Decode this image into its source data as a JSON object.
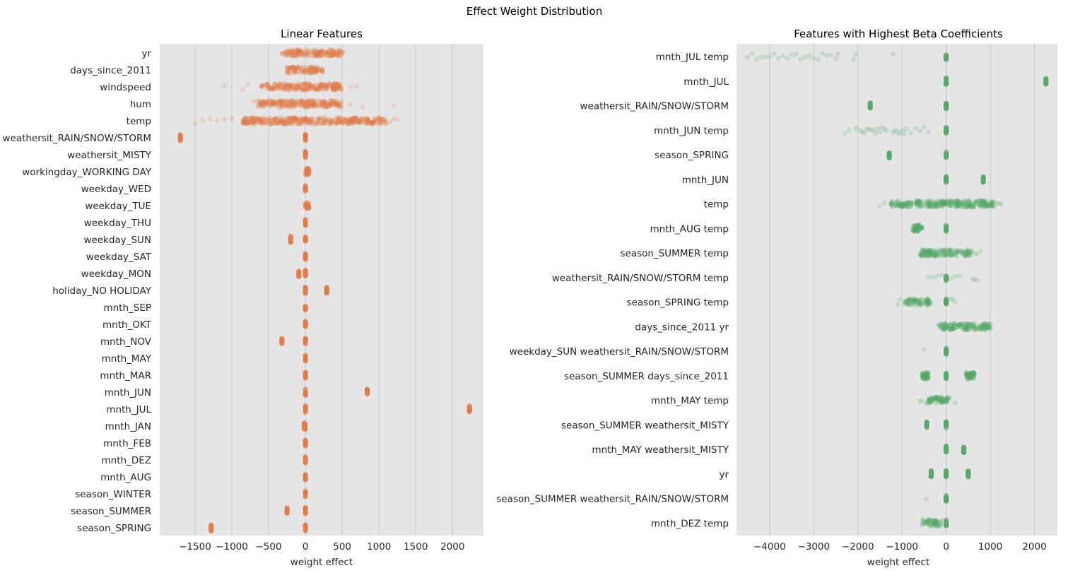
{
  "figure": {
    "suptitle": "Effect Weight Distribution",
    "background": "#ffffff",
    "axes_background": "#e5e5e5",
    "grid_color": "#c8c8c8"
  },
  "chart_data": [
    {
      "type": "scatter",
      "subtype": "strip",
      "title": "Linear Features",
      "xlabel": "weight effect",
      "ylabel": "",
      "xlim": [
        -1980,
        2420
      ],
      "xticks": [
        -1500,
        -1000,
        -500,
        0,
        500,
        1000,
        1500,
        2000
      ],
      "xtick_labels": [
        "−1500",
        "−1000",
        "−500",
        "0",
        "500",
        "1000",
        "1500",
        "2000"
      ],
      "grid": "vertical",
      "color": "#e07b4a",
      "categories": [
        "yr",
        "days_since_2011",
        "windspeed",
        "hum",
        "temp",
        "weathersit_RAIN/SNOW/STORM",
        "weathersit_MISTY",
        "workingday_WORKING DAY",
        "weekday_WED",
        "weekday_TUE",
        "weekday_THU",
        "weekday_SUN",
        "weekday_SAT",
        "weekday_MON",
        "holiday_NO HOLIDAY",
        "mnth_SEP",
        "mnth_OKT",
        "mnth_NOV",
        "mnth_MAY",
        "mnth_MAR",
        "mnth_JUN",
        "mnth_JUL",
        "mnth_JAN",
        "mnth_FEB",
        "mnth_DEZ",
        "mnth_AUG",
        "season_WINTER",
        "season_SUMMER",
        "season_SPRING"
      ],
      "distributions": [
        {
          "clusters": [
            [
              -320,
              0
            ],
            [
              510,
              0
            ]
          ]
        },
        {
          "clusters": [
            [
              -260,
              240
            ]
          ]
        },
        {
          "clusters": [
            [
              -600,
              500
            ]
          ],
          "outliers": [
            -1100,
            -850,
            -780,
            620,
            700
          ]
        },
        {
          "clusters": [
            [
              -650,
              520
            ]
          ],
          "outliers": [
            -700,
            600,
            780,
            1200
          ]
        },
        {
          "clusters": [
            [
              -850,
              1100
            ]
          ],
          "outliers": [
            -1500,
            -1400,
            -1300,
            -1200,
            -1100,
            -1000,
            1150,
            1200,
            1250
          ]
        },
        {
          "clusters": [
            [
              -1700,
              -1700
            ],
            [
              0,
              0
            ]
          ]
        },
        {
          "clusters": [
            [
              0,
              0
            ]
          ]
        },
        {
          "clusters": [
            [
              0,
              50
            ]
          ]
        },
        {
          "clusters": [
            [
              0,
              0
            ]
          ]
        },
        {
          "clusters": [
            [
              0,
              50
            ]
          ]
        },
        {
          "clusters": [
            [
              0,
              0
            ]
          ]
        },
        {
          "clusters": [
            [
              -200,
              -200
            ],
            [
              0,
              0
            ]
          ]
        },
        {
          "clusters": [
            [
              0,
              0
            ]
          ]
        },
        {
          "clusters": [
            [
              -90,
              -90
            ],
            [
              0,
              0
            ]
          ]
        },
        {
          "clusters": [
            [
              0,
              0
            ],
            [
              290,
              290
            ]
          ]
        },
        {
          "clusters": [
            [
              0,
              0
            ]
          ]
        },
        {
          "clusters": [
            [
              0,
              0
            ]
          ]
        },
        {
          "clusters": [
            [
              -320,
              -320
            ],
            [
              0,
              0
            ]
          ]
        },
        {
          "clusters": [
            [
              0,
              0
            ]
          ]
        },
        {
          "clusters": [
            [
              0,
              0
            ]
          ]
        },
        {
          "clusters": [
            [
              0,
              0
            ],
            [
              840,
              840
            ]
          ]
        },
        {
          "clusters": [
            [
              0,
              0
            ],
            [
              2230,
              2230
            ]
          ]
        },
        {
          "clusters": [
            [
              -20,
              0
            ]
          ]
        },
        {
          "clusters": [
            [
              0,
              0
            ]
          ]
        },
        {
          "clusters": [
            [
              0,
              0
            ]
          ]
        },
        {
          "clusters": [
            [
              0,
              0
            ]
          ]
        },
        {
          "clusters": [
            [
              0,
              0
            ]
          ]
        },
        {
          "clusters": [
            [
              -250,
              -250
            ],
            [
              0,
              0
            ]
          ]
        },
        {
          "clusters": [
            [
              -1280,
              -1280
            ],
            [
              0,
              0
            ]
          ]
        }
      ]
    },
    {
      "type": "scatter",
      "subtype": "strip",
      "title": "Features with Highest Beta Coefficients",
      "xlabel": "weight effect",
      "ylabel": "",
      "xlim": [
        -4750,
        2520
      ],
      "xticks": [
        -4000,
        -3000,
        -2000,
        -1000,
        0,
        1000,
        2000
      ],
      "xtick_labels": [
        "−4000",
        "−3000",
        "−2000",
        "−1000",
        "0",
        "1000",
        "2000"
      ],
      "grid": "vertical",
      "color": "#55a868",
      "categories": [
        "mnth_JUL temp",
        "mnth_JUL",
        "weathersit_RAIN/SNOW/STORM",
        "mnth_JUN temp",
        "season_SPRING",
        "mnth_JUN",
        "temp",
        "mnth_AUG temp",
        "season_SUMMER temp",
        "weathersit_RAIN/SNOW/STORM temp",
        "season_SPRING temp",
        "days_since_2011 yr",
        "weekday_SUN weathersit_RAIN/SNOW/STORM",
        "season_SUMMER days_since_2011",
        "mnth_MAY temp",
        "season_SUMMER weathersit_MISTY",
        "mnth_MAY weathersit_MISTY",
        "yr",
        "season_SUMMER weathersit_RAIN/SNOW/STORM",
        "mnth_DEZ temp"
      ],
      "distributions": [
        {
          "clusters": [
            [
              0,
              0
            ]
          ],
          "outliers": [
            -4500,
            -4400,
            -4300,
            -4200,
            -4100,
            -4000,
            -3900,
            -3800,
            -3700,
            -3600,
            -3500,
            -3400,
            -3300,
            -3200,
            -3100,
            -3000,
            -2900,
            -2800,
            -2700,
            -2600,
            -2500,
            -2450,
            -2100,
            -2050,
            -1200
          ]
        },
        {
          "clusters": [
            [
              0,
              0
            ],
            [
              2260,
              2260
            ]
          ]
        },
        {
          "clusters": [
            [
              -1720,
              -1720
            ],
            [
              0,
              0
            ]
          ]
        },
        {
          "clusters": [
            [
              0,
              0
            ]
          ],
          "outliers": [
            -2300,
            -2200,
            -2050,
            -1950,
            -1900,
            -1850,
            -1800,
            -1750,
            -1700,
            -1650,
            -1600,
            -1550,
            -1500,
            -1450,
            -1400,
            -1350,
            -1200,
            -1150,
            -1100,
            -1050,
            -1000,
            -950,
            -900,
            -800,
            -700,
            -600,
            -500,
            -400
          ]
        },
        {
          "clusters": [
            [
              -1290,
              -1290
            ],
            [
              0,
              0
            ]
          ]
        },
        {
          "clusters": [
            [
              0,
              0
            ],
            [
              840,
              840
            ]
          ]
        },
        {
          "clusters": [
            [
              -1250,
              1100
            ]
          ],
          "outliers": [
            -1500,
            -1400,
            1150,
            1200,
            1250
          ]
        },
        {
          "clusters": [
            [
              -780,
              -540
            ],
            [
              0,
              0
            ]
          ]
        },
        {
          "clusters": [
            [
              -600,
              600
            ]
          ],
          "outliers": [
            650,
            700,
            780
          ]
        },
        {
          "clusters": [
            [
              0,
              0
            ]
          ],
          "outliers": [
            -400,
            -300,
            -200,
            -100,
            100,
            200,
            300,
            600,
            650,
            700
          ]
        },
        {
          "clusters": [
            [
              -950,
              -350
            ],
            [
              0,
              0
            ]
          ],
          "outliers": [
            -1100,
            -1050,
            100,
            150,
            200
          ]
        },
        {
          "clusters": [
            [
              -180,
              1000
            ]
          ]
        },
        {
          "clusters": [
            [
              0,
              0
            ]
          ],
          "outliers": [
            -500
          ]
        },
        {
          "clusters": [
            [
              -550,
              -400
            ],
            [
              0,
              0
            ],
            [
              450,
              640
            ]
          ]
        },
        {
          "clusters": [
            [
              -450,
              100
            ]
          ],
          "outliers": [
            -600,
            -550,
            200
          ]
        },
        {
          "clusters": [
            [
              -440,
              -440
            ],
            [
              0,
              0
            ]
          ]
        },
        {
          "clusters": [
            [
              0,
              0
            ],
            [
              400,
              400
            ]
          ]
        },
        {
          "clusters": [
            [
              -340,
              -340
            ],
            [
              0,
              0
            ],
            [
              500,
              500
            ]
          ]
        },
        {
          "clusters": [
            [
              0,
              0
            ]
          ],
          "outliers": [
            -450
          ]
        },
        {
          "clusters": [
            [
              -550,
              -100
            ],
            [
              0,
              0
            ]
          ]
        }
      ]
    }
  ]
}
